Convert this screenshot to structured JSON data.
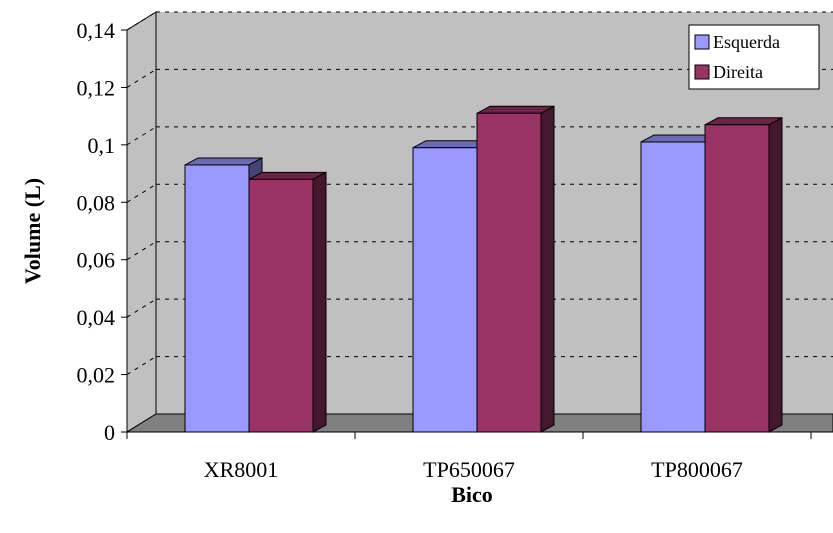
{
  "chart_data": {
    "type": "bar",
    "title": "",
    "xlabel": "Bico",
    "ylabel": "Volume (L)",
    "categories": [
      "XR8001",
      "TP650067",
      "TP800067"
    ],
    "series": [
      {
        "name": "Esquerda",
        "values": [
          0.093,
          0.099,
          0.101
        ],
        "color": "#9999ff"
      },
      {
        "name": "Direita",
        "values": [
          0.088,
          0.111,
          0.107
        ],
        "color": "#993366"
      }
    ],
    "ylim": [
      0,
      0.14
    ],
    "yticks": [
      "0",
      "0,02",
      "0,04",
      "0,06",
      "0,08",
      "0,1",
      "0,12",
      "0,14"
    ],
    "grid": true,
    "legend_position": "top-right",
    "wall_color": "#c0c0c0",
    "floor_color": "#808080"
  }
}
